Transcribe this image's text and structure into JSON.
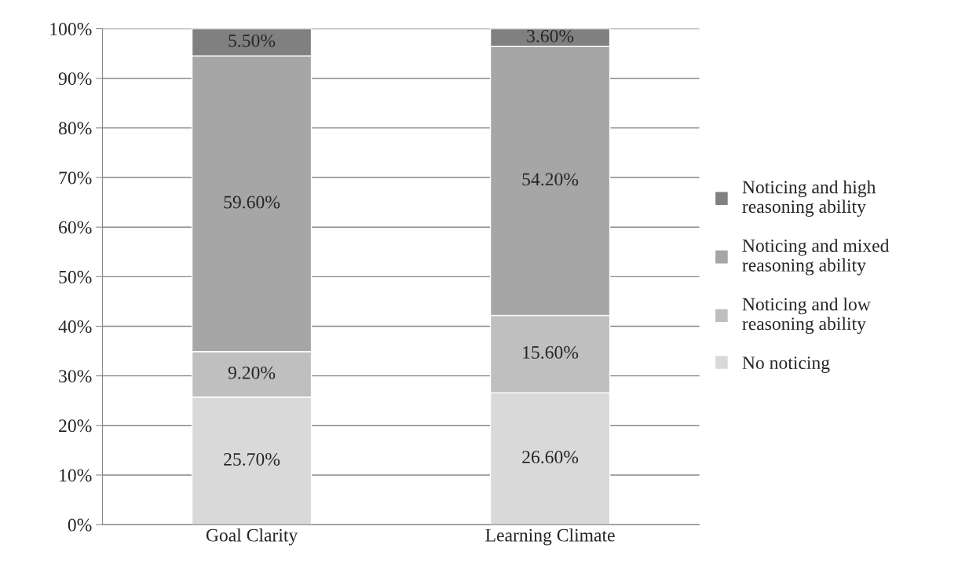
{
  "chart_data": {
    "type": "bar",
    "stacked": true,
    "categories": [
      "Goal Clarity",
      "Learning Climate"
    ],
    "series": [
      {
        "name": "No noticing",
        "color": "#d9d9d9",
        "values": [
          25.7,
          26.6
        ],
        "value_labels": [
          "25.70%",
          "26.60%"
        ]
      },
      {
        "name": "Noticing and low reasoning ability",
        "color": "#bfbfbf",
        "values": [
          9.2,
          15.6
        ],
        "value_labels": [
          "9.20%",
          "15.60%"
        ]
      },
      {
        "name": "Noticing and mixed reasoning ability",
        "color": "#a6a6a6",
        "values": [
          59.6,
          54.2
        ],
        "value_labels": [
          "59.60%",
          "54.20%"
        ]
      },
      {
        "name": "Noticing and high reasoning ability",
        "color": "#808080",
        "values": [
          5.5,
          3.6
        ],
        "value_labels": [
          "5.50%",
          "3.60%"
        ]
      }
    ],
    "ylim": [
      0,
      100
    ],
    "yticks": [
      {
        "value": 0,
        "label": "0%"
      },
      {
        "value": 10,
        "label": "10%"
      },
      {
        "value": 20,
        "label": "20%"
      },
      {
        "value": 30,
        "label": "30%"
      },
      {
        "value": 40,
        "label": "40%"
      },
      {
        "value": 50,
        "label": "50%"
      },
      {
        "value": 60,
        "label": "60%"
      },
      {
        "value": 70,
        "label": "70%"
      },
      {
        "value": 80,
        "label": "80%"
      },
      {
        "value": 90,
        "label": "90%"
      },
      {
        "value": 100,
        "label": "100%"
      }
    ],
    "grid": "y",
    "legend": "right"
  }
}
